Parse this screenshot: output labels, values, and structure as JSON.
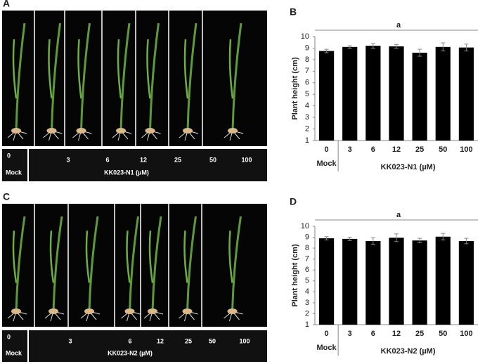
{
  "photo_panels": [
    {
      "letter": "A",
      "mock_dose": "0",
      "mock": "Mock",
      "doses": [
        "3",
        "6",
        "12",
        "25",
        "50",
        "100"
      ],
      "treatment": "KK023-N1 (µM)"
    },
    {
      "letter": "C",
      "mock_dose": "0",
      "mock": "Mock",
      "doses": [
        "3",
        "6",
        "12",
        "25",
        "50",
        "100"
      ],
      "treatment": "KK023-N2 (µM)"
    }
  ],
  "chart_data": [
    {
      "type": "bar",
      "letter": "B",
      "categories": [
        "0",
        "3",
        "6",
        "12",
        "25",
        "50",
        "100"
      ],
      "sub_label": "Mock",
      "series": [
        {
          "color": "#000000",
          "values": [
            8.75,
            9.1,
            9.2,
            9.15,
            8.6,
            9.1,
            9.05
          ],
          "errors": [
            0.15,
            0.1,
            0.2,
            0.15,
            0.3,
            0.35,
            0.3
          ]
        }
      ],
      "ylabel": "Plant height (cm)",
      "xlabel": "KK023-N1 (µM)",
      "annotation": "a",
      "ylim": [
        1,
        10
      ],
      "yticks": [
        1,
        2,
        3,
        4,
        5,
        6,
        7,
        8,
        9,
        10
      ]
    },
    {
      "type": "bar",
      "letter": "D",
      "categories": [
        "0",
        "3",
        "6",
        "12",
        "25",
        "50",
        "100"
      ],
      "sub_label": "Mock",
      "series": [
        {
          "color": "#000000",
          "values": [
            8.9,
            8.85,
            8.65,
            8.95,
            8.7,
            9.05,
            8.65
          ],
          "errors": [
            0.15,
            0.15,
            0.3,
            0.35,
            0.2,
            0.3,
            0.25
          ]
        }
      ],
      "ylabel": "Plant height (cm)",
      "xlabel": "KK023-N2 (µM)",
      "annotation": "a",
      "ylim": [
        1,
        10
      ],
      "yticks": [
        1,
        2,
        3,
        4,
        5,
        6,
        7,
        8,
        9,
        10
      ]
    }
  ]
}
